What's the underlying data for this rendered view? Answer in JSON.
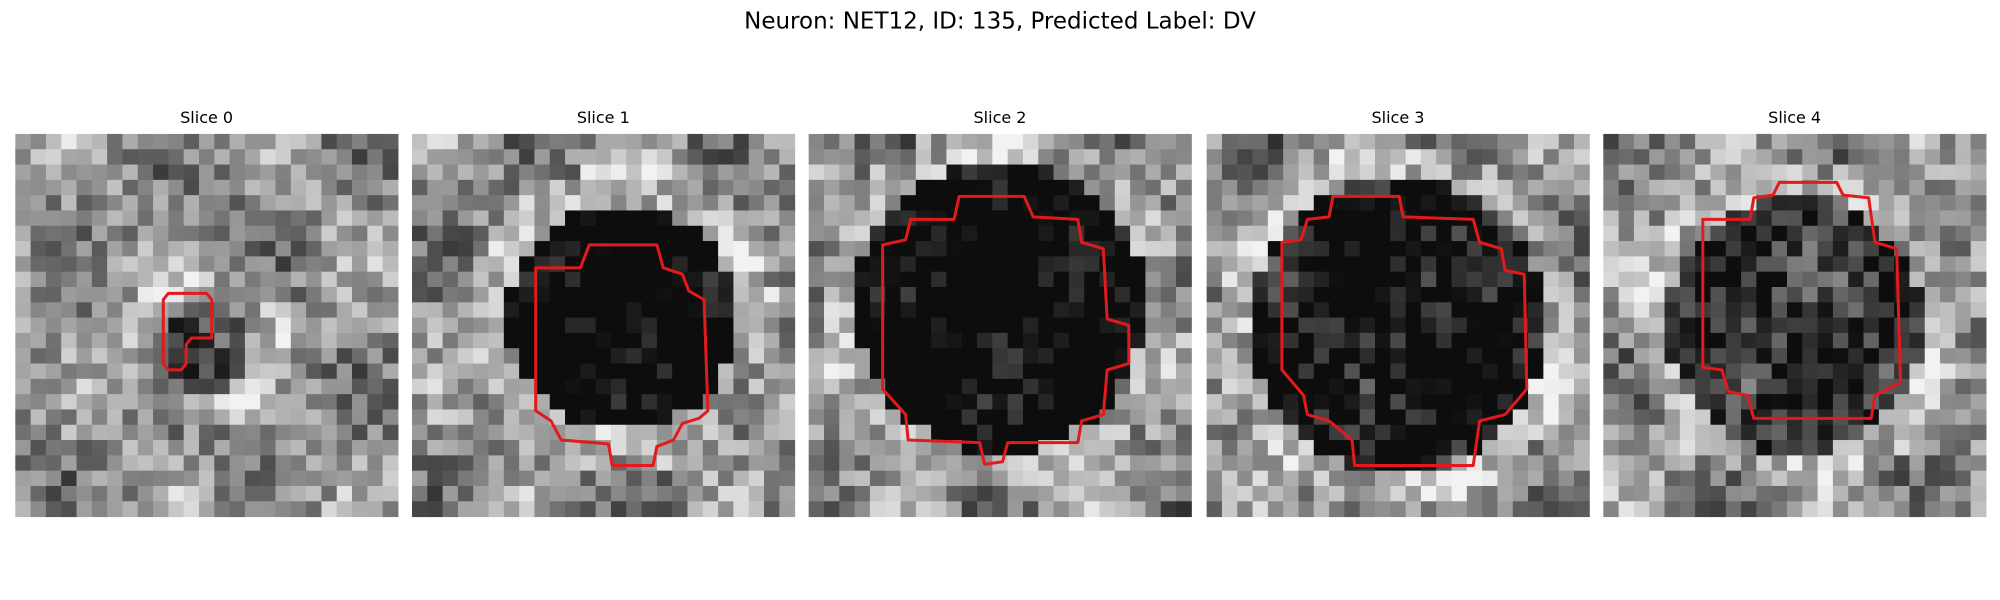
{
  "figure": {
    "title": "Neuron: NET12, ID: 135, Predicted Label: DV",
    "panels": [
      {
        "title": "Slice 0"
      },
      {
        "title": "Slice 1"
      },
      {
        "title": "Slice 2"
      },
      {
        "title": "Slice 3"
      },
      {
        "title": "Slice 4"
      }
    ]
  }
}
